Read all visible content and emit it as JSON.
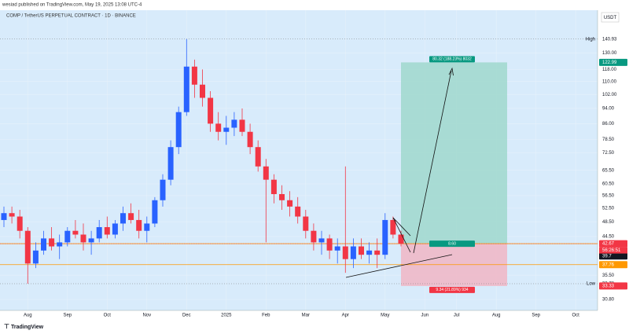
{
  "chart_data": {
    "type": "candlestick",
    "attribution": "wesiad published on TradingView.com, May 19, 2025 13:08 UTC-4",
    "title": "COMP / TetherUS PERPETUAL CONTRACT · 1D · BINANCE",
    "currency": "USDT",
    "brand": "TradingView",
    "log_scale": true,
    "up_color": "#2962ff",
    "down_color": "#f23645",
    "categories": [
      null,
      null,
      null,
      "Aug",
      null,
      null,
      null,
      null,
      "Sep",
      null,
      null,
      null,
      null,
      "Oct",
      null,
      null,
      null,
      null,
      "Nov",
      null,
      null,
      null,
      null,
      "Dec",
      null,
      null,
      null,
      null,
      "2025",
      null,
      null,
      null,
      null,
      "Feb",
      null,
      null,
      null,
      null,
      "Mar",
      null,
      null,
      null,
      null,
      "Apr",
      null,
      null,
      null,
      null,
      "May",
      null,
      null,
      null,
      null,
      "Jun",
      null,
      null,
      null,
      "Jul",
      null,
      null,
      null,
      null,
      "Aug",
      null,
      null,
      null,
      null,
      "Sep",
      null,
      null,
      null,
      null,
      "Oct",
      null,
      null
    ],
    "open": [
      49,
      51,
      50,
      46,
      38,
      41,
      44,
      42,
      43,
      46,
      45,
      43,
      44,
      47,
      45,
      48,
      51,
      49,
      46,
      48,
      55,
      62,
      75,
      92,
      120,
      108,
      100,
      86,
      82,
      84,
      88,
      82,
      75,
      67,
      62,
      57,
      55,
      53,
      50,
      46,
      43,
      44,
      41,
      42,
      39,
      42,
      40,
      41,
      40,
      49,
      45,
      null,
      null,
      null,
      null,
      null,
      null,
      null,
      null,
      null,
      null,
      null,
      null,
      null,
      null,
      null,
      null,
      null,
      null,
      null,
      null,
      null,
      null,
      null,
      null
    ],
    "high": [
      53,
      53,
      52,
      47,
      43,
      46,
      47,
      45,
      47,
      49,
      48,
      46,
      49,
      50,
      49,
      53,
      54,
      52,
      50,
      56,
      64,
      78,
      95,
      140.93,
      125,
      118,
      104,
      92,
      90,
      92,
      94,
      86,
      78,
      70,
      64,
      60,
      58,
      56,
      52,
      48,
      46,
      45,
      44,
      67,
      44,
      44,
      43,
      44,
      51,
      50,
      46,
      null,
      null,
      null,
      null,
      null,
      null,
      null,
      null,
      null,
      null,
      null,
      null,
      null,
      null,
      null,
      null,
      null,
      null,
      null,
      null,
      null,
      null,
      null,
      null
    ],
    "low": [
      47,
      48,
      44,
      33.78,
      37,
      40,
      41,
      39,
      42,
      44,
      41,
      40,
      43,
      44,
      44,
      46,
      48,
      44,
      43,
      47,
      53,
      60,
      72,
      90,
      100,
      95,
      82,
      78,
      76,
      80,
      80,
      72,
      65,
      43,
      54,
      52,
      50,
      48,
      44,
      41,
      40,
      39,
      38,
      36,
      37,
      39,
      38,
      37,
      39,
      44,
      42,
      null,
      null,
      null,
      null,
      null,
      null,
      null,
      null,
      null,
      null,
      null,
      null,
      null,
      null,
      null,
      null,
      null,
      null,
      null,
      null,
      null,
      null,
      null,
      null
    ],
    "close": [
      51,
      50,
      46,
      38,
      41,
      44,
      42,
      43,
      46,
      45,
      43,
      44,
      47,
      45,
      48,
      51,
      49,
      46,
      48,
      55,
      62,
      75,
      92,
      120,
      108,
      100,
      86,
      82,
      84,
      88,
      82,
      75,
      67,
      62,
      57,
      55,
      53,
      50,
      46,
      43,
      44,
      41,
      42,
      39,
      42,
      40,
      41,
      40,
      49,
      45,
      42.67,
      null,
      null,
      null,
      null,
      null,
      null,
      null,
      null,
      null,
      null,
      null,
      null,
      null,
      null,
      null,
      null,
      null,
      null,
      null,
      null,
      null,
      null,
      null,
      null
    ],
    "ylim": [
      28.9,
      166.8
    ],
    "yticks": [
      {
        "value": 130,
        "label": "130.00"
      },
      {
        "value": 118,
        "label": "118.00"
      },
      {
        "value": 110,
        "label": "110.00"
      },
      {
        "value": 102,
        "label": "102.00"
      },
      {
        "value": 94,
        "label": "94.00"
      },
      {
        "value": 86,
        "label": "86.00"
      },
      {
        "value": 78.5,
        "label": "78.50"
      },
      {
        "value": 72.5,
        "label": "72.50"
      },
      {
        "value": 65.5,
        "label": "65.50"
      },
      {
        "value": 60.5,
        "label": "60.50"
      },
      {
        "value": 56.5,
        "label": "56.50"
      },
      {
        "value": 52.5,
        "label": "52.50"
      },
      {
        "value": 48.5,
        "label": "48.50"
      },
      {
        "value": 44.5,
        "label": "44.50"
      },
      {
        "value": 35.5,
        "label": "35.50"
      },
      {
        "value": 30.8,
        "label": "30.80"
      }
    ],
    "grid": true,
    "high_marker": {
      "name": "High",
      "value": 140.93
    },
    "low_marker": {
      "name": "Low",
      "value": 33.78
    },
    "horizontal_lines": [
      {
        "value": 42.67,
        "color": "#ff9800"
      },
      {
        "value": 37.76,
        "color": "#ff9800"
      }
    ],
    "price_tags": [
      {
        "value": 122.99,
        "color": "#089981"
      },
      {
        "value": 42.67,
        "color": "#f23645"
      },
      {
        "value": 39.7,
        "color": "#131722"
      },
      {
        "value": 37.76,
        "color": "#ff9800"
      },
      {
        "value": 33.33,
        "color": "#f23645"
      }
    ],
    "countdown": "56:26:51",
    "position": {
      "entry": 42.67,
      "target": 122.99,
      "stop": 33.33,
      "target_label": "80.32 (188.23%) 8032",
      "ratio_label": "8.60",
      "stop_label": "9.34 (21.89%) 934"
    }
  }
}
